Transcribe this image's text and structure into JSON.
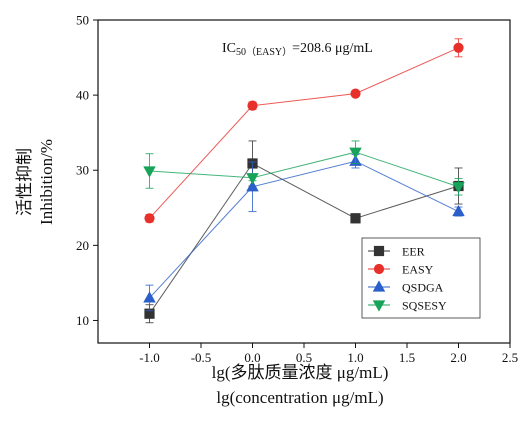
{
  "chart_data": {
    "type": "line",
    "annotation": {
      "prefix": "IC",
      "subscript": "50（EASY）",
      "suffix": "=208.6 μg/mL"
    },
    "xlabel": [
      "lg(多肽质量浓度 μg/mL)",
      "lg(concentration μg/mL)"
    ],
    "ylabel": [
      "活性抑制",
      "Inhibition/%"
    ],
    "xlim": [
      -1.5,
      2.5
    ],
    "ylim": [
      7,
      50
    ],
    "xticks": [
      -1.0,
      -0.5,
      0.0,
      0.5,
      1.0,
      1.5,
      2.0,
      2.5
    ],
    "xtick_labels": [
      "-1.0",
      "-0.5",
      "0.0",
      "0.5",
      "1.0",
      "1.5",
      "2.0",
      "2.5"
    ],
    "yticks": [
      10,
      20,
      30,
      40,
      50
    ],
    "ytick_labels": [
      "10",
      "20",
      "30",
      "40",
      "50"
    ],
    "grid": false,
    "legend_position": "lower-right",
    "x": [
      -1.0,
      0.0,
      1.0,
      2.0
    ],
    "series": [
      {
        "name": "EER",
        "color": "#333333",
        "marker": "square",
        "values": [
          10.9,
          30.9,
          23.6,
          27.9
        ],
        "errors": [
          1.2,
          3.0,
          0.6,
          2.4
        ]
      },
      {
        "name": "EASY",
        "color": "#e8302b",
        "marker": "circle",
        "values": [
          23.6,
          38.6,
          40.2,
          46.3
        ],
        "errors": [
          0.5,
          0.5,
          0.3,
          1.2
        ]
      },
      {
        "name": "QSDGA",
        "color": "#2b5fc9",
        "marker": "triangle-up",
        "values": [
          13.0,
          27.8,
          31.2,
          24.5
        ],
        "errors": [
          1.7,
          3.3,
          0.9,
          0.6
        ]
      },
      {
        "name": "SQSESY",
        "color": "#18a35a",
        "marker": "triangle-down",
        "values": [
          29.9,
          29.0,
          32.4,
          27.8
        ],
        "errors": [
          2.3,
          0.4,
          1.5,
          1.1
        ]
      }
    ]
  }
}
